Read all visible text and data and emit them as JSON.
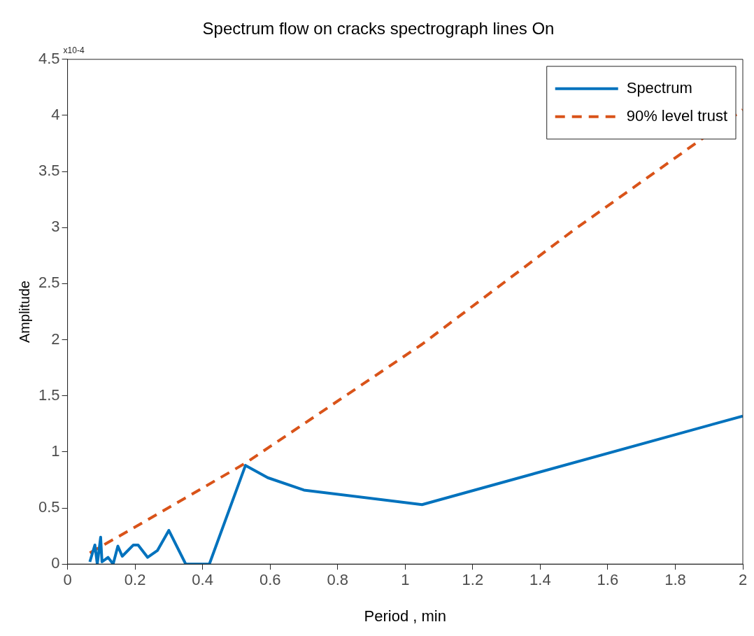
{
  "chart_data": {
    "type": "line",
    "title": "Spectrum flow on cracks spectrograph lines On",
    "xlabel": "Period , min",
    "ylabel": "Amplitude",
    "annotations": [
      "x10-4"
    ],
    "xlim": [
      0,
      2
    ],
    "xticks": [
      0,
      0.2,
      0.4,
      0.6,
      0.8,
      1,
      1.2,
      1.4,
      1.6,
      1.8,
      2
    ],
    "ylim": [
      0,
      4.5
    ],
    "yticks": [
      0,
      0.5,
      1,
      1.5,
      2,
      2.5,
      3,
      3.5,
      4,
      4.5
    ],
    "grid": false,
    "legend": "top right",
    "marker": "none",
    "series": [
      {
        "name": "Spectrum",
        "color": "#0072bd",
        "line_style": "solid",
        "x": [
          0.066,
          0.081,
          0.088,
          0.098,
          0.102,
          0.12,
          0.135,
          0.149,
          0.162,
          0.195,
          0.209,
          0.237,
          0.266,
          0.3,
          0.35,
          0.42,
          0.527,
          0.593,
          0.7,
          1.05,
          2
        ],
        "values": [
          0.02,
          0.17,
          0,
          0.24,
          0.02,
          0.06,
          0,
          0.16,
          0.07,
          0.17,
          0.17,
          0.06,
          0.12,
          0.3,
          0,
          0,
          0.88,
          0.77,
          0.66,
          0.53,
          1.32
        ]
      },
      {
        "name": "90% level trust",
        "color": "#d95319",
        "line_style": "dashed",
        "x": [
          0.066,
          0.2,
          0.527,
          1.05,
          1.5,
          2
        ],
        "values": [
          0.1,
          0.33,
          0.9,
          1.96,
          2.98,
          4.05
        ]
      }
    ]
  }
}
